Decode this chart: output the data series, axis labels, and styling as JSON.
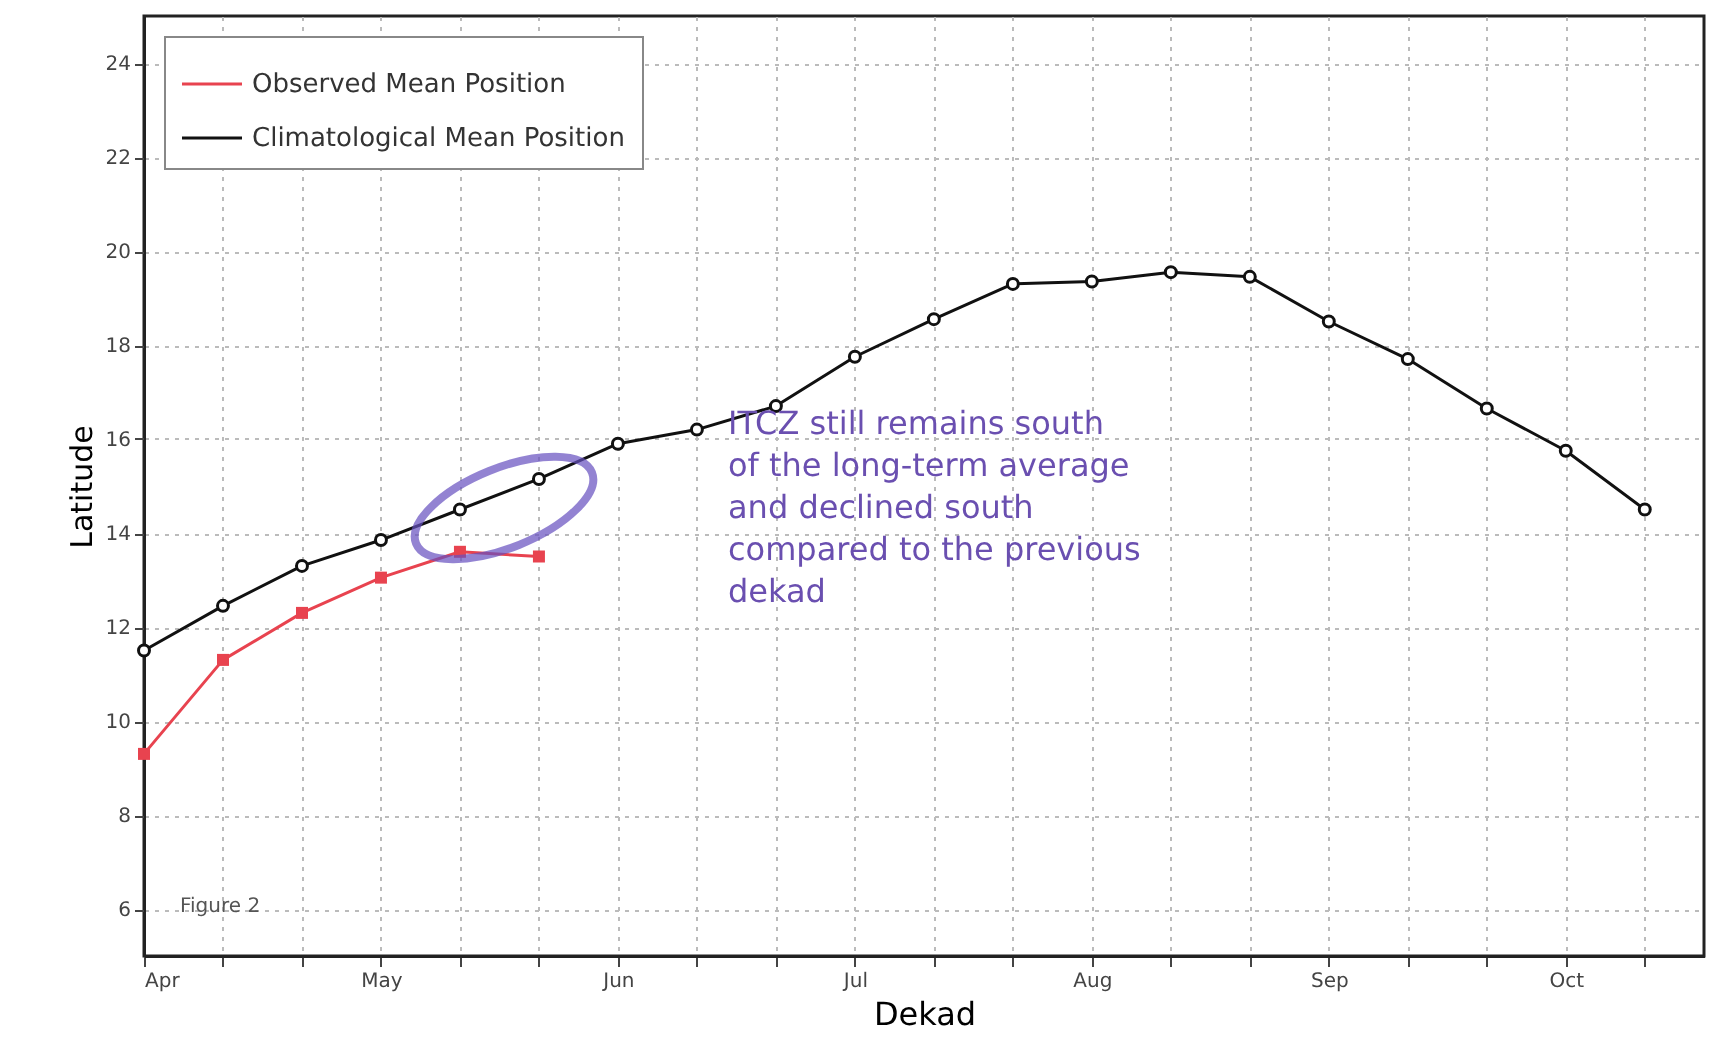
{
  "chart_data": {
    "type": "line",
    "xlabel": "Dekad",
    "ylabel": "Latitude",
    "categories": [
      "Apr",
      null,
      null,
      "May",
      null,
      null,
      "Jun",
      null,
      null,
      "Jul",
      null,
      null,
      "Aug",
      null,
      null,
      "Sep",
      null,
      null,
      "Oct",
      null
    ],
    "ylim": [
      5,
      25
    ],
    "yticks": [
      6,
      8,
      10,
      12,
      14,
      16,
      18,
      20,
      22,
      24
    ],
    "grid": true,
    "legend": "top left",
    "line_style": "solid",
    "annotations": [
      "ITCZ still remains south of the long-term average and declined south compared to the previous dekad",
      "Figure 2"
    ],
    "series": [
      {
        "name": "Observed Mean Position",
        "color": "#e8434f",
        "marker": "square",
        "values": [
          9.3,
          11.3,
          12.3,
          13.05,
          13.6,
          13.5,
          null,
          null,
          null,
          null,
          null,
          null,
          null,
          null,
          null,
          null,
          null,
          null,
          null,
          null
        ]
      },
      {
        "name": "Climatological Mean Position",
        "color": "#111111",
        "marker": "circle",
        "values": [
          11.5,
          12.45,
          13.3,
          13.85,
          14.5,
          15.15,
          15.9,
          16.2,
          16.7,
          17.75,
          18.55,
          19.3,
          19.35,
          19.55,
          19.45,
          18.5,
          17.7,
          16.65,
          15.75,
          14.5
        ]
      }
    ]
  }
}
